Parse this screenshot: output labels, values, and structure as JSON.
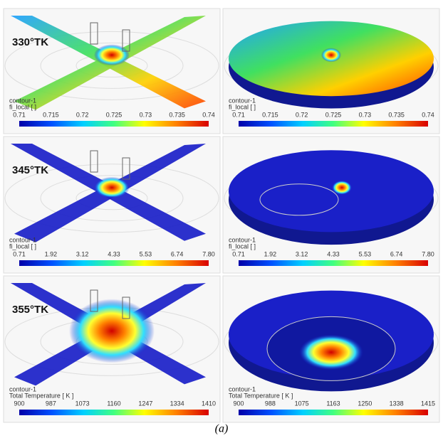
{
  "panels": [
    {
      "label": "330°TK",
      "legend_title": "contour-1",
      "variable": "fi_local [ ]",
      "ticks": [
        "0.71",
        "0.715",
        "0.72",
        "0.725",
        "0.73",
        "0.735",
        "0.74"
      ]
    },
    {
      "legend_title": "contour-1",
      "variable": "fi_local [ ]",
      "ticks": [
        "0.71",
        "0.715",
        "0.72",
        "0.725",
        "0.73",
        "0.735",
        "0.74"
      ]
    },
    {
      "label": "345°TK",
      "legend_title": "contour-1",
      "variable": "fi_local [ ]",
      "ticks": [
        "0.71",
        "1.92",
        "3.12",
        "4.33",
        "5.53",
        "6.74",
        "7.80"
      ]
    },
    {
      "legend_title": "contour-1",
      "variable": "fi_local [ ]",
      "ticks": [
        "0.71",
        "1.92",
        "3.12",
        "4.33",
        "5.53",
        "6.74",
        "7.80"
      ]
    },
    {
      "label": "355°TK",
      "legend_title": "contour-1",
      "variable": "Total Temperature [ K ]",
      "ticks": [
        "900",
        "987",
        "1073",
        "1160",
        "1247",
        "1334",
        "1410"
      ]
    },
    {
      "legend_title": "contour-1",
      "variable": "Total Temperature [ K ]",
      "ticks": [
        "900",
        "988",
        "1075",
        "1163",
        "1250",
        "1338",
        "1415"
      ]
    }
  ],
  "caption": "(a)"
}
